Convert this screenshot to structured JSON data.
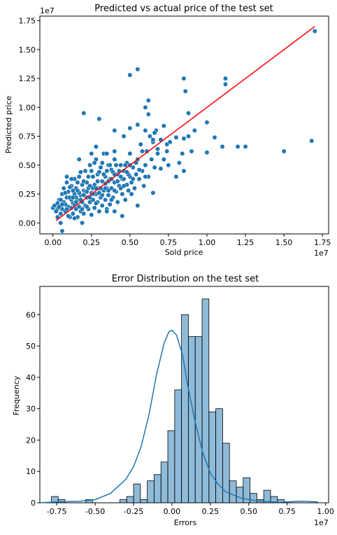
{
  "chart_data": [
    {
      "type": "scatter",
      "title": "Predicted vs actual price of the test set",
      "xlabel": "Sold price",
      "ylabel": "Predicted price",
      "x_offset_label": "1e7",
      "y_offset_label": "1e7",
      "xlim": [
        -0.085,
        1.79
      ],
      "ylim": [
        -0.095,
        1.79
      ],
      "xticks": [
        0.0,
        0.25,
        0.5,
        0.75,
        1.0,
        1.25,
        1.5,
        1.75
      ],
      "xtick_labels": [
        "0.00",
        "0.25",
        "0.50",
        "0.75",
        "1.00",
        "1.25",
        "1.50",
        "1.75"
      ],
      "yticks": [
        0.0,
        0.25,
        0.5,
        0.75,
        1.0,
        1.25,
        1.5,
        1.75
      ],
      "ytick_labels": [
        "0.00",
        "0.25",
        "0.50",
        "0.75",
        "1.00",
        "1.25",
        "1.50",
        "1.75"
      ],
      "point_color": "#1f77b4",
      "line_color": "#ff0000",
      "fit_line": [
        [
          0.02,
          0.02
        ],
        [
          1.7,
          1.7
        ]
      ],
      "points": [
        [
          0.05,
          0.15
        ],
        [
          0.06,
          0.12
        ],
        [
          0.07,
          0.18
        ],
        [
          0.08,
          0.1
        ],
        [
          0.09,
          0.22
        ],
        [
          0.1,
          0.14
        ],
        [
          0.1,
          0.27
        ],
        [
          0.11,
          0.05
        ],
        [
          0.12,
          0.2
        ],
        [
          0.12,
          0.32
        ],
        [
          0.13,
          0.17
        ],
        [
          0.13,
          0.08
        ],
        [
          0.14,
          0.25
        ],
        [
          0.14,
          0.38
        ],
        [
          0.15,
          0.12
        ],
        [
          0.15,
          0.3
        ],
        [
          0.16,
          0.2
        ],
        [
          0.16,
          0.05
        ],
        [
          0.17,
          0.14
        ],
        [
          0.17,
          0.4
        ],
        [
          0.18,
          0.24
        ],
        [
          0.18,
          0.1
        ],
        [
          0.19,
          0.33
        ],
        [
          0.19,
          0.18
        ],
        [
          0.2,
          0.08
        ],
        [
          0.2,
          0.28
        ],
        [
          0.21,
          0.15
        ],
        [
          0.21,
          0.45
        ],
        [
          0.22,
          0.22
        ],
        [
          0.22,
          0.35
        ],
        [
          0.23,
          0.12
        ],
        [
          0.23,
          0.3
        ],
        [
          0.24,
          0.18
        ],
        [
          0.24,
          0.5
        ],
        [
          0.25,
          0.26
        ],
        [
          0.25,
          0.07
        ],
        [
          0.26,
          0.4
        ],
        [
          0.26,
          0.2
        ],
        [
          0.27,
          0.13
        ],
        [
          0.27,
          0.33
        ],
        [
          0.28,
          0.25
        ],
        [
          0.28,
          0.55
        ],
        [
          0.29,
          0.18
        ],
        [
          0.29,
          0.42
        ],
        [
          0.3,
          0.3
        ],
        [
          0.3,
          0.1
        ],
        [
          0.31,
          0.22
        ],
        [
          0.31,
          0.48
        ],
        [
          0.32,
          0.15
        ],
        [
          0.32,
          0.36
        ],
        [
          0.33,
          0.28
        ],
        [
          0.33,
          0.6
        ],
        [
          0.34,
          0.2
        ],
        [
          0.34,
          0.4
        ],
        [
          0.35,
          0.12
        ],
        [
          0.35,
          0.3
        ],
        [
          0.36,
          0.5
        ],
        [
          0.36,
          0.24
        ],
        [
          0.37,
          0.38
        ],
        [
          0.37,
          0.16
        ],
        [
          0.38,
          0.3
        ],
        [
          0.38,
          0.46
        ],
        [
          0.39,
          0.22
        ],
        [
          0.4,
          0.35
        ],
        [
          0.4,
          0.55
        ],
        [
          0.41,
          0.27
        ],
        [
          0.42,
          0.42
        ],
        [
          0.42,
          0.18
        ],
        [
          0.43,
          0.32
        ],
        [
          0.44,
          0.5
        ],
        [
          0.45,
          0.25
        ],
        [
          0.45,
          0.38
        ],
        [
          0.46,
          0.45
        ],
        [
          0.47,
          0.2
        ],
        [
          0.48,
          0.33
        ],
        [
          0.48,
          0.52
        ],
        [
          0.49,
          0.28
        ],
        [
          0.5,
          0.4
        ],
        [
          0.5,
          0.6
        ],
        [
          0.51,
          0.35
        ],
        [
          0.52,
          0.48
        ],
        [
          0.53,
          0.3
        ],
        [
          0.54,
          0.42
        ],
        [
          0.55,
          0.55
        ],
        [
          0.56,
          0.38
        ],
        [
          0.57,
          0.68
        ],
        [
          0.58,
          0.45
        ],
        [
          0.59,
          0.32
        ],
        [
          0.6,
          0.5
        ],
        [
          0.61,
          0.62
        ],
        [
          0.62,
          0.4
        ],
        [
          0.63,
          0.75
        ],
        [
          0.64,
          0.55
        ],
        [
          0.65,
          0.7
        ],
        [
          0.66,
          0.48
        ],
        [
          0.67,
          0.8
        ],
        [
          0.68,
          0.6
        ],
        [
          0.7,
          0.72
        ],
        [
          0.72,
          0.55
        ],
        [
          0.74,
          0.68
        ],
        [
          0.03,
          0.12
        ],
        [
          0.04,
          0.2
        ],
        [
          0.05,
          0.08
        ],
        [
          0.06,
          0.25
        ],
        [
          0.07,
          0.3
        ],
        [
          0.08,
          0.16
        ],
        [
          0.09,
          0.35
        ],
        [
          0.1,
          0.06
        ],
        [
          0.11,
          0.22
        ],
        [
          0.12,
          0.13
        ],
        [
          0.13,
          0.28
        ],
        [
          0.14,
          0.16
        ],
        [
          0.15,
          0.22
        ],
        [
          0.16,
          0.35
        ],
        [
          0.17,
          0.26
        ],
        [
          0.18,
          0.44
        ],
        [
          0.19,
          0.12
        ],
        [
          0.2,
          0.36
        ],
        [
          0.21,
          0.27
        ],
        [
          0.22,
          0.14
        ],
        [
          0.23,
          0.4
        ],
        [
          0.24,
          0.32
        ],
        [
          0.25,
          0.45
        ],
        [
          0.26,
          0.3
        ],
        [
          0.27,
          0.52
        ],
        [
          0.28,
          0.17
        ],
        [
          0.29,
          0.36
        ],
        [
          0.3,
          0.44
        ],
        [
          0.31,
          0.3
        ],
        [
          0.32,
          0.52
        ],
        [
          0.33,
          0.42
        ],
        [
          0.34,
          0.3
        ],
        [
          0.35,
          0.45
        ],
        [
          0.36,
          0.36
        ],
        [
          0.37,
          0.5
        ],
        [
          0.38,
          0.2
        ],
        [
          0.39,
          0.44
        ],
        [
          0.4,
          0.28
        ],
        [
          0.41,
          0.5
        ],
        [
          0.43,
          0.45
        ],
        [
          0.44,
          0.3
        ],
        [
          0.46,
          0.38
        ],
        [
          0.47,
          0.5
        ],
        [
          0.49,
          0.42
        ],
        [
          0.51,
          0.25
        ],
        [
          0.52,
          0.38
        ],
        [
          0.54,
          0.52
        ],
        [
          0.56,
          0.46
        ],
        [
          0.58,
          0.62
        ],
        [
          0.6,
          0.4
        ],
        [
          0.0,
          0.13
        ],
        [
          0.01,
          0.15
        ],
        [
          0.02,
          0.1
        ],
        [
          0.03,
          0.17
        ],
        [
          0.04,
          0.14
        ],
        [
          0.05,
          0.2
        ],
        [
          0.06,
          0.16
        ],
        [
          0.08,
          0.26
        ],
        [
          0.09,
          0.12
        ],
        [
          0.11,
          0.31
        ],
        [
          0.13,
          0.22
        ],
        [
          0.15,
          0.18
        ],
        [
          0.16,
          0.28
        ],
        [
          0.18,
          0.2
        ],
        [
          0.2,
          0.24
        ],
        [
          0.22,
          0.27
        ],
        [
          0.24,
          0.22
        ],
        [
          0.26,
          0.25
        ],
        [
          0.28,
          0.3
        ],
        [
          0.3,
          0.26
        ],
        [
          0.32,
          0.24
        ],
        [
          0.34,
          0.34
        ],
        [
          0.36,
          0.28
        ],
        [
          0.38,
          0.38
        ],
        [
          0.4,
          0.42
        ],
        [
          0.42,
          0.36
        ],
        [
          0.44,
          0.4
        ],
        [
          0.46,
          0.32
        ],
        [
          0.48,
          0.44
        ],
        [
          0.5,
          0.5
        ],
        [
          0.03,
          0.05
        ],
        [
          0.05,
          0.0
        ],
        [
          0.06,
          -0.07
        ],
        [
          0.09,
          0.4
        ],
        [
          0.12,
          0.38
        ],
        [
          0.14,
          0.04
        ],
        [
          0.17,
          0.55
        ],
        [
          0.19,
          0.0
        ],
        [
          0.25,
          0.6
        ],
        [
          0.28,
          0.66
        ],
        [
          0.35,
          0.6
        ],
        [
          0.4,
          0.62
        ],
        [
          0.46,
          0.75
        ],
        [
          0.5,
          0.82
        ],
        [
          0.55,
          0.85
        ],
        [
          0.6,
          0.8
        ],
        [
          0.62,
          0.94
        ],
        [
          0.65,
          0.72
        ],
        [
          0.66,
          0.78
        ],
        [
          0.68,
          0.64
        ],
        [
          0.72,
          0.84
        ],
        [
          0.74,
          0.62
        ],
        [
          0.76,
          0.7
        ],
        [
          0.8,
          0.74
        ],
        [
          0.82,
          0.52
        ],
        [
          0.84,
          0.6
        ],
        [
          0.85,
          0.73
        ],
        [
          0.88,
          0.75
        ],
        [
          0.9,
          0.62
        ],
        [
          0.92,
          0.8
        ],
        [
          0.2,
          0.95
        ],
        [
          0.3,
          0.9
        ],
        [
          0.4,
          0.8
        ],
        [
          0.5,
          1.28
        ],
        [
          0.55,
          1.33
        ],
        [
          0.6,
          1.0
        ],
        [
          0.62,
          1.06
        ],
        [
          0.85,
          1.25
        ],
        [
          0.86,
          1.14
        ],
        [
          0.88,
          0.95
        ],
        [
          1.0,
          0.87
        ],
        [
          1.05,
          0.74
        ],
        [
          1.12,
          1.25
        ],
        [
          1.12,
          1.2
        ],
        [
          1.1,
          0.66
        ],
        [
          1.2,
          0.66
        ],
        [
          1.25,
          0.66
        ],
        [
          1.0,
          0.61
        ],
        [
          1.5,
          0.62
        ],
        [
          1.68,
          0.71
        ],
        [
          1.7,
          1.66
        ],
        [
          0.7,
          0.47
        ],
        [
          0.75,
          0.5
        ],
        [
          0.8,
          0.4
        ],
        [
          0.85,
          0.45
        ],
        [
          0.65,
          0.26
        ],
        [
          0.55,
          0.15
        ],
        [
          0.45,
          0.06
        ],
        [
          0.4,
          0.1
        ],
        [
          0.35,
          0.1
        ]
      ]
    },
    {
      "type": "histogram",
      "title": "Error Distribution on the test set",
      "xlabel": "Errors",
      "ylabel": "Frequency",
      "x_offset_label": "1e7",
      "xlim": [
        -0.86,
        1.02
      ],
      "ylim": [
        0,
        69
      ],
      "xticks": [
        -0.75,
        -0.5,
        -0.25,
        0.0,
        0.25,
        0.5,
        0.75,
        1.0
      ],
      "xtick_labels": [
        "-0.75",
        "-0.50",
        "-0.25",
        "0.00",
        "0.25",
        "0.50",
        "0.75",
        "1.00"
      ],
      "yticks": [
        0,
        10,
        20,
        30,
        40,
        50,
        60
      ],
      "ytick_labels": [
        "0",
        "10",
        "20",
        "30",
        "40",
        "50",
        "60"
      ],
      "bar_color": "#1f77b4",
      "bar_alpha": 0.5,
      "kde_color": "#1f77b4",
      "bin_start": -0.785,
      "bin_width": 0.0446,
      "counts": [
        2,
        1,
        0,
        0,
        0,
        1,
        0,
        0,
        0,
        0,
        1,
        2,
        6,
        1,
        7,
        9,
        13,
        23,
        36,
        60,
        53,
        53,
        65,
        29,
        30,
        19,
        7,
        5,
        8,
        3,
        1,
        4,
        2,
        1,
        0,
        0,
        0,
        0,
        0,
        0,
        0,
        0,
        0,
        0,
        0,
        0,
        0,
        0,
        0,
        0,
        0,
        0,
        0,
        0
      ],
      "kde": [
        [
          -0.85,
          0.05
        ],
        [
          -0.75,
          0.3
        ],
        [
          -0.6,
          0.5
        ],
        [
          -0.5,
          1.0
        ],
        [
          -0.4,
          3.0
        ],
        [
          -0.3,
          7.5
        ],
        [
          -0.25,
          11.5
        ],
        [
          -0.2,
          18.0
        ],
        [
          -0.15,
          28.0
        ],
        [
          -0.1,
          41.0
        ],
        [
          -0.05,
          51.0
        ],
        [
          -0.02,
          54.5
        ],
        [
          0.0,
          55.0
        ],
        [
          0.03,
          53.5
        ],
        [
          0.07,
          47.0
        ],
        [
          0.1,
          38.0
        ],
        [
          0.15,
          26.0
        ],
        [
          0.2,
          16.0
        ],
        [
          0.25,
          9.5
        ],
        [
          0.3,
          6.0
        ],
        [
          0.35,
          3.5
        ],
        [
          0.45,
          1.5
        ],
        [
          0.55,
          0.6
        ],
        [
          0.7,
          0.2
        ],
        [
          0.85,
          0.5
        ],
        [
          0.95,
          0.3
        ]
      ]
    }
  ]
}
